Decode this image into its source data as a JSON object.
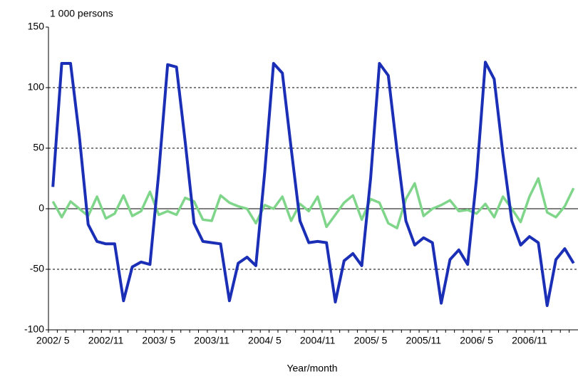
{
  "chart_data": {
    "type": "line",
    "y_axis_label": "1 000 persons",
    "x_axis_label": "Year/month",
    "categories": [
      "2002/ 5",
      null,
      null,
      null,
      null,
      null,
      "2002/11",
      null,
      null,
      null,
      null,
      null,
      "2003/ 5",
      null,
      null,
      null,
      null,
      null,
      "2003/11",
      null,
      null,
      null,
      null,
      null,
      "2004/ 5",
      null,
      null,
      null,
      null,
      null,
      "2004/11",
      null,
      null,
      null,
      null,
      null,
      "2005/ 5",
      null,
      null,
      null,
      null,
      null,
      "2005/11",
      null,
      null,
      null,
      null,
      null,
      "2006/ 5",
      null,
      null,
      null,
      null,
      null,
      "2006/11",
      null,
      null,
      null,
      null,
      null
    ],
    "series": [
      {
        "color": "#1a2fb5",
        "width": 4,
        "values": [
          18,
          120,
          120,
          60,
          -13,
          -27,
          -29,
          -29,
          -76,
          -48,
          -44,
          -46,
          30,
          119,
          117,
          55,
          -12,
          -27,
          -28,
          -29,
          -76,
          -45,
          -40,
          -47,
          30,
          120,
          112,
          50,
          -10,
          -28,
          -27,
          -28,
          -77,
          -43,
          -37,
          -47,
          25,
          120,
          110,
          48,
          -10,
          -30,
          -24,
          -28,
          -78,
          -42,
          -34,
          -46,
          25,
          121,
          107,
          45,
          -10,
          -30,
          -23,
          -28,
          -80,
          -42,
          -33,
          -45
        ]
      },
      {
        "color": "#7fd68a",
        "width": 3.5,
        "values": [
          6,
          -7,
          6,
          0,
          -6,
          10,
          -8,
          -4,
          11,
          -6,
          -2,
          14,
          -5,
          -2,
          -5,
          9,
          6,
          -9,
          -10,
          11,
          5,
          2,
          0,
          -12,
          3,
          0,
          10,
          -10,
          4,
          -2,
          10,
          -15,
          -5,
          5,
          11,
          -9,
          8,
          5,
          -12,
          -16,
          8,
          21,
          -6,
          0,
          3,
          7,
          -2,
          -1,
          -4,
          4,
          -7,
          10,
          0,
          -11,
          10,
          25,
          -3,
          -7,
          2,
          17
        ]
      }
    ],
    "ylim": [
      -100,
      150
    ],
    "yticks": [
      -100,
      -50,
      0,
      50,
      100,
      150
    ],
    "grid": true
  }
}
